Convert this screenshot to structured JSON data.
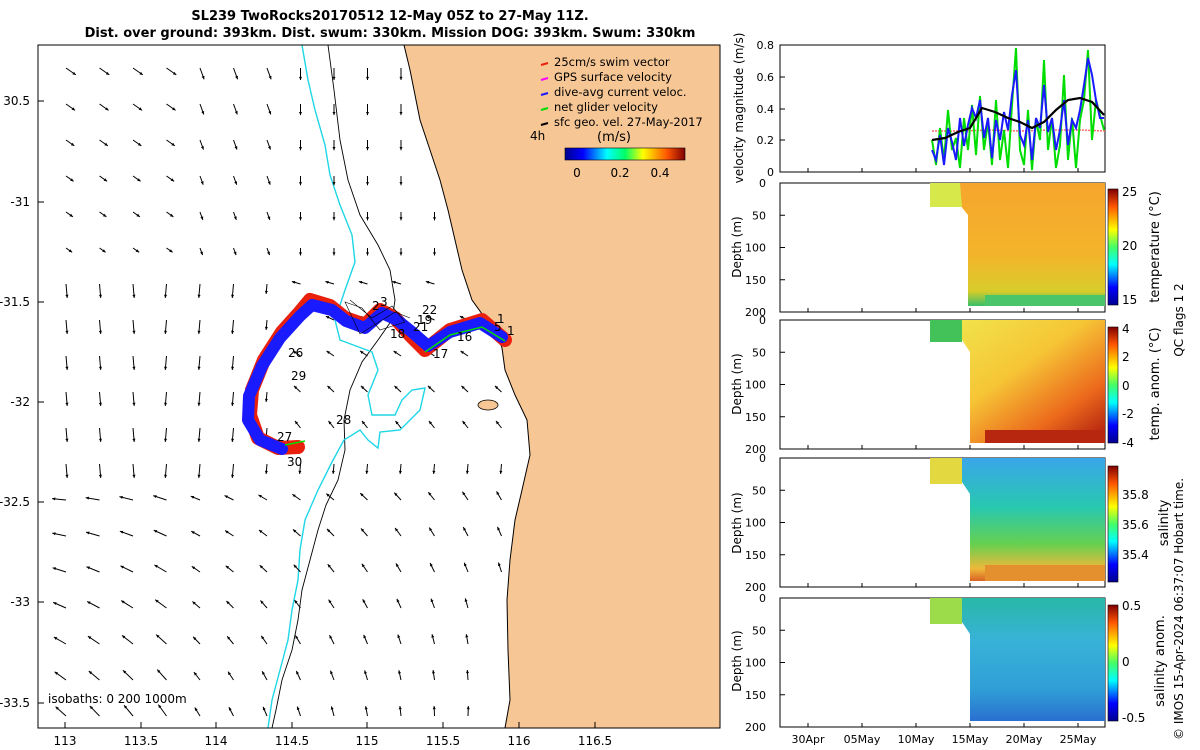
{
  "title": {
    "line1": "SL239 TwoRocks20170512 12-May 05Z to 27-May 11Z.",
    "line2": "Dist. over ground: 393km. Dist. swum: 330km. Mission DOG: 393km. Swum: 330km"
  },
  "map": {
    "lon_ticks": [
      "113",
      "113.5",
      "114",
      "114.5",
      "115",
      "115.5",
      "116",
      "116.5"
    ],
    "lat_ticks": [
      "30.5",
      "-31",
      "-31.5",
      "-32",
      "-32.5",
      "-33",
      "-33.5"
    ],
    "legend": [
      {
        "label": "25cm/s swim vector",
        "color": "#e8200c"
      },
      {
        "label": "GPS surface velocity",
        "color": "#ff00ff"
      },
      {
        "label": "dive-avg current veloc.",
        "color": "#1a1aff"
      },
      {
        "label": "net glider velocity",
        "color": "#00dd00"
      },
      {
        "label": "sfc geo. vel. 27-May-2017",
        "color": "#000000"
      }
    ],
    "colorbar_label": "(m/s)",
    "colorbar_ticks": [
      "0",
      "0.2",
      "0.4"
    ],
    "time_marker": "4h",
    "isobaths_label": "isobaths: 0   200  1000m",
    "track_day_labels": [
      {
        "text": "22"
      },
      {
        "text": "19"
      },
      {
        "text": "21"
      },
      {
        "text": "18"
      },
      {
        "text": "16"
      },
      {
        "text": "17"
      },
      {
        "text": "26"
      },
      {
        "text": "29"
      },
      {
        "text": "28"
      },
      {
        "text": "27"
      },
      {
        "text": "30"
      },
      {
        "text": "1"
      },
      {
        "text": "5"
      },
      {
        "text": "1"
      },
      {
        "text": "2"
      },
      {
        "text": "3"
      }
    ],
    "colors": {
      "land": "#f7c695",
      "shelf_200m": "#1ed6e6",
      "coast": "#000000"
    }
  },
  "velocity_panel": {
    "ylabel": "velocity magnitude (m/s)",
    "yticks": [
      "0",
      "0.2",
      "0.4",
      "0.6",
      "0.8"
    ]
  },
  "profile_panels": [
    {
      "colorbar_label": "temperature (°C)",
      "cticks": [
        "25",
        "20",
        "15"
      ],
      "ylabel": "Depth (m)",
      "yticks": [
        "0",
        "50",
        "100",
        "150",
        "200"
      ]
    },
    {
      "colorbar_label": "temp. anom. (°C)",
      "cticks": [
        "4",
        "2",
        "0",
        "-2",
        "-4"
      ],
      "ylabel": "Depth (m)",
      "yticks": [
        "0",
        "50",
        "100",
        "150",
        "200"
      ]
    },
    {
      "colorbar_label": "salinity",
      "cticks": [
        "35.8",
        "35.6",
        "35.4"
      ],
      "ylabel": "Depth (m)",
      "yticks": [
        "0",
        "50",
        "100",
        "150",
        "200"
      ]
    },
    {
      "colorbar_label": "salinity anom.",
      "cticks": [
        "0.5",
        "0",
        "-0.5"
      ],
      "ylabel": "Depth (m)",
      "yticks": [
        "0",
        "50",
        "100",
        "150",
        "200"
      ]
    }
  ],
  "right_side_label": "QC flags 1  2",
  "time_axis": [
    "30Apr",
    "05May",
    "10May",
    "15May",
    "20May",
    "25May"
  ],
  "copyright": "© IMOS 15-Apr-2024 06:37:07 Hobart time."
}
